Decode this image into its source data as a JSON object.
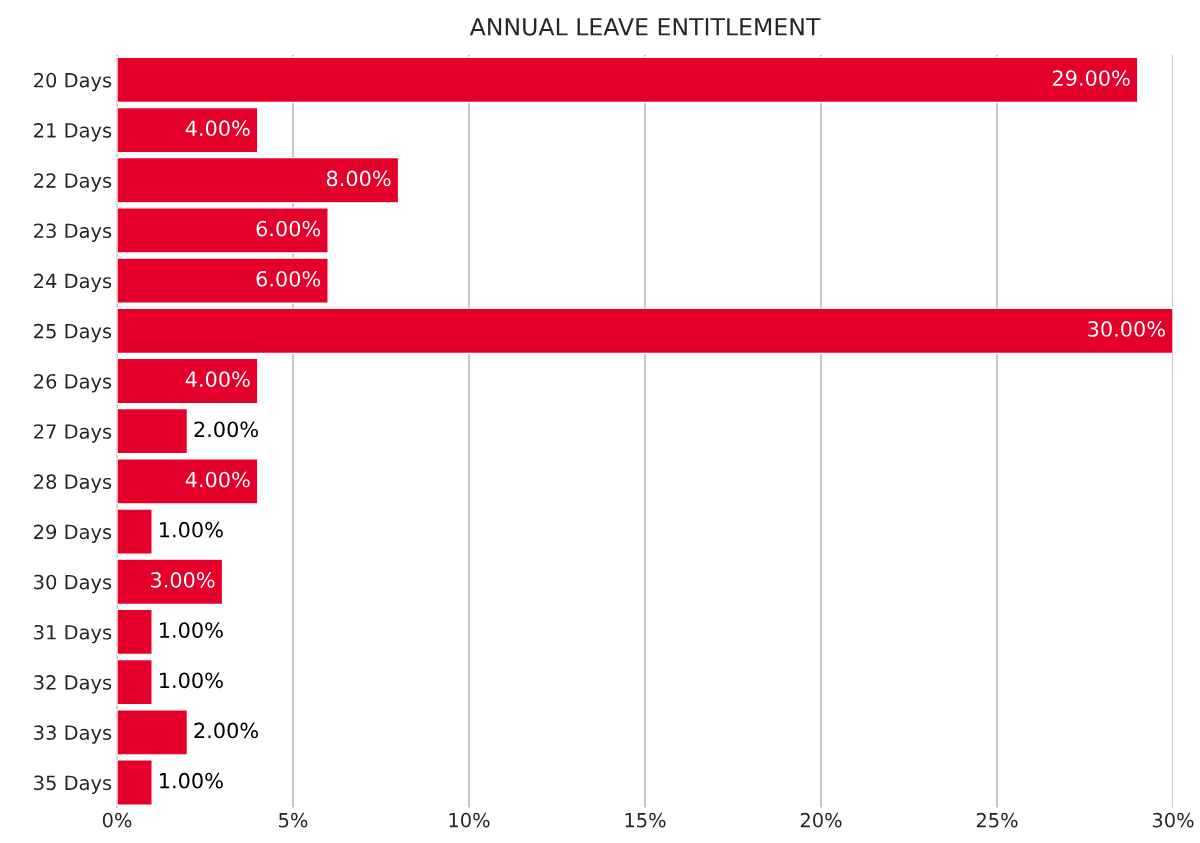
{
  "chart_data": {
    "type": "bar",
    "orientation": "horizontal",
    "title": "ANNUAL LEAVE ENTITLEMENT",
    "categories": [
      "20 Days",
      "21 Days",
      "22 Days",
      "23 Days",
      "24 Days",
      "25 Days",
      "26 Days",
      "27 Days",
      "28 Days",
      "29 Days",
      "30 Days",
      "31 Days",
      "32 Days",
      "33 Days",
      "35 Days"
    ],
    "values": [
      29,
      4,
      8,
      6,
      6,
      30,
      4,
      2,
      4,
      1,
      3,
      1,
      1,
      2,
      1
    ],
    "value_labels": [
      "29.00%",
      "4.00%",
      "8.00%",
      "6.00%",
      "6.00%",
      "30.00%",
      "4.00%",
      "2.00%",
      "4.00%",
      "1.00%",
      "3.00%",
      "1.00%",
      "1.00%",
      "2.00%",
      "1.00%"
    ],
    "color": "#e4002b",
    "xlim": [
      0,
      30
    ],
    "xticks": [
      {
        "value": 0,
        "label": "0%"
      },
      {
        "value": 5,
        "label": "5%"
      },
      {
        "value": 10,
        "label": "10%"
      },
      {
        "value": 15,
        "label": "15%"
      },
      {
        "value": 20,
        "label": "20%"
      },
      {
        "value": 25,
        "label": "25%"
      },
      {
        "value": 30,
        "label": "30%"
      }
    ],
    "grid": "x",
    "legend": false
  }
}
